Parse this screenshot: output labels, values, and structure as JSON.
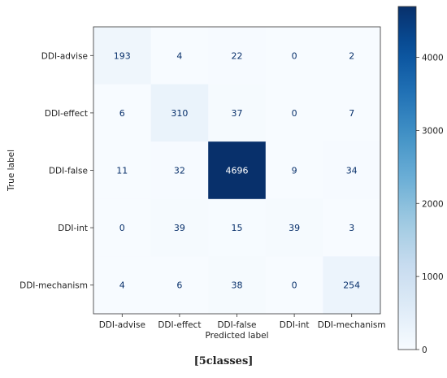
{
  "caption": "[5classes]",
  "chart_data": {
    "type": "heatmap",
    "title": "",
    "xlabel": "Predicted label",
    "ylabel": "True label",
    "x_categories": [
      "DDI-advise",
      "DDI-effect",
      "DDI-false",
      "DDI-int",
      "DDI-mechanism"
    ],
    "y_categories": [
      "DDI-advise",
      "DDI-effect",
      "DDI-false",
      "DDI-int",
      "DDI-mechanism"
    ],
    "values": [
      [
        193,
        4,
        22,
        0,
        2
      ],
      [
        6,
        310,
        37,
        0,
        7
      ],
      [
        11,
        32,
        4696,
        9,
        34
      ],
      [
        0,
        39,
        15,
        39,
        3
      ],
      [
        4,
        6,
        38,
        0,
        254
      ]
    ],
    "colormap": "Blues",
    "colorbar": {
      "range": [
        0,
        4696
      ],
      "ticks": [
        0,
        1000,
        2000,
        3000,
        4000
      ]
    }
  }
}
